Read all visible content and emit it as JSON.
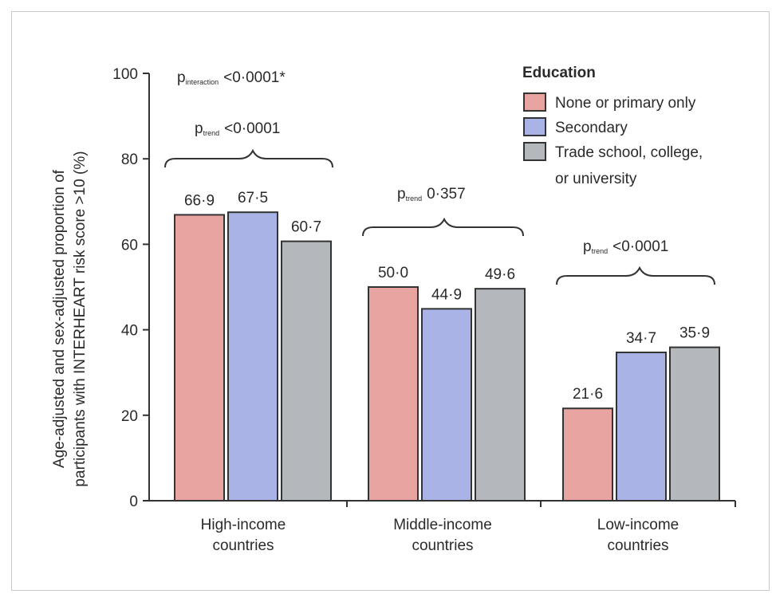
{
  "chart_data": {
    "type": "bar",
    "title": "",
    "ylabel_line1": "Age-adjusted and sex-adjusted proportion of",
    "ylabel_line2": "participants with INTERHEART risk score >10 (%)",
    "ylim": [
      0,
      100
    ],
    "yticks": [
      "0",
      "20",
      "40",
      "60",
      "80",
      "100"
    ],
    "categories": [
      {
        "line1": "High-income",
        "line2": "countries"
      },
      {
        "line1": "Middle-income",
        "line2": "countries"
      },
      {
        "line1": "Low-income",
        "line2": "countries"
      }
    ],
    "legend": {
      "title": "Education",
      "placement": "top-right",
      "entries": [
        {
          "line1": "None or primary only",
          "line2": ""
        },
        {
          "line1": "Secondary",
          "line2": ""
        },
        {
          "line1": "Trade school, college,",
          "line2": "or university"
        }
      ]
    },
    "series": [
      {
        "name": "None or primary only",
        "color": "#e8a4a0",
        "values": [
          66.9,
          50.0,
          21.6
        ],
        "labels": [
          "66·9",
          "50·0",
          "21·6"
        ]
      },
      {
        "name": "Secondary",
        "color": "#a9b3e6",
        "values": [
          67.5,
          44.9,
          34.7
        ],
        "labels": [
          "67·5",
          "44·9",
          "34·7"
        ]
      },
      {
        "name": "Trade school, college, or university",
        "color": "#b4b7bc",
        "values": [
          60.7,
          49.6,
          35.9
        ],
        "labels": [
          "60·7",
          "49·6",
          "35·9"
        ]
      }
    ],
    "annotations": {
      "interaction": {
        "p": "p",
        "sub": "interaction",
        "value": "<0·0001*"
      },
      "trends": [
        {
          "p": "p",
          "sub": "trend",
          "value": "<0·0001"
        },
        {
          "p": "p",
          "sub": "trend",
          "value": "0·357"
        },
        {
          "p": "p",
          "sub": "trend",
          "value": "<0·0001"
        }
      ]
    }
  }
}
